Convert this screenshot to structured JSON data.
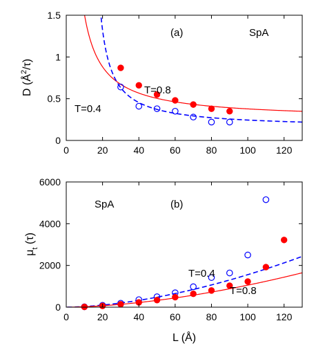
{
  "chart_data": [
    {
      "type": "scatter",
      "panel_label": "(a)",
      "system_label": "SpA",
      "ylabel": "D (Å²/τ)",
      "xlabel": "",
      "xlim": [
        0,
        130
      ],
      "ylim": [
        0,
        1.5
      ],
      "x_ticks": [
        0,
        20,
        40,
        60,
        80,
        100,
        120
      ],
      "y_ticks": [
        0,
        0.5,
        1,
        1.5
      ],
      "x_tick_labels": [
        "0",
        "20",
        "40",
        "60",
        "80",
        "100",
        "120"
      ],
      "y_tick_labels": [
        "0",
        "0.5",
        "1",
        "1.5"
      ],
      "series": [
        {
          "name": "T=0.8",
          "color": "#ff0000",
          "marker": "filled-circle",
          "x": [
            30,
            40,
            50,
            60,
            70,
            80,
            90
          ],
          "y": [
            0.87,
            0.66,
            0.55,
            0.48,
            0.43,
            0.38,
            0.35
          ],
          "fit": {
            "style": "solid",
            "form": "a + b/L",
            "a": 0.252,
            "b": 12.6
          }
        },
        {
          "name": "T=0.4",
          "color": "#0000ff",
          "marker": "open-circle",
          "x": [
            30,
            40,
            50,
            60,
            70,
            80,
            90
          ],
          "y": [
            0.64,
            0.41,
            0.38,
            0.35,
            0.28,
            0.22,
            0.22
          ],
          "fit": {
            "style": "dashed",
            "form": "a + b/(L - c)",
            "a": 0.15,
            "b": 8.2,
            "c": 13
          }
        }
      ]
    },
    {
      "type": "scatter",
      "panel_label": "(b)",
      "system_label": "SpA",
      "ylabel": "μ_t (τ)",
      "xlabel": "L (Å)",
      "xlim": [
        0,
        130
      ],
      "ylim": [
        0,
        6000
      ],
      "x_ticks": [
        0,
        20,
        40,
        60,
        80,
        100,
        120
      ],
      "y_ticks": [
        0,
        2000,
        4000,
        6000
      ],
      "x_tick_labels": [
        "0",
        "20",
        "40",
        "60",
        "80",
        "100",
        "120"
      ],
      "y_tick_labels": [
        "0",
        "2000",
        "4000",
        "6000"
      ],
      "series": [
        {
          "name": "T=0.4",
          "color": "#0000ff",
          "marker": "open-circle",
          "x": [
            10,
            20,
            30,
            40,
            50,
            60,
            70,
            80,
            90,
            100,
            110
          ],
          "y": [
            20,
            90,
            190,
            360,
            500,
            690,
            980,
            1420,
            1640,
            2500,
            5150
          ],
          "fit": {
            "style": "dashed",
            "form": "a * L^p",
            "a": 0.62,
            "p": 1.7
          }
        },
        {
          "name": "T=0.8",
          "color": "#ff0000",
          "marker": "filled-circle",
          "x": [
            10,
            20,
            30,
            40,
            50,
            60,
            70,
            80,
            90,
            100,
            110,
            120
          ],
          "y": [
            15,
            60,
            140,
            230,
            340,
            480,
            640,
            800,
            1030,
            1230,
            1920,
            3220
          ],
          "fit": {
            "style": "solid",
            "form": "a * L^p",
            "a": 0.42,
            "p": 1.7
          }
        }
      ]
    }
  ]
}
